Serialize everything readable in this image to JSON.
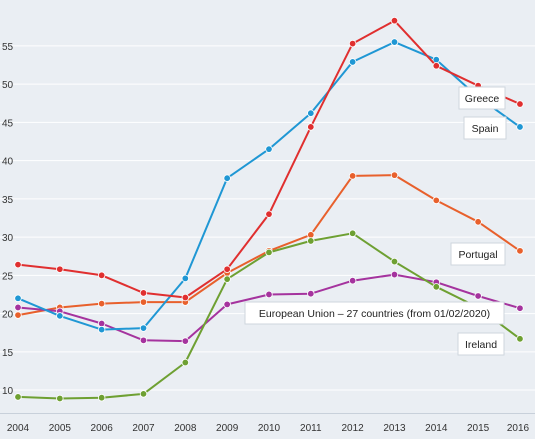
{
  "chart_data": {
    "type": "line",
    "title": "",
    "xlabel": "",
    "ylabel": "",
    "x": [
      "2004",
      "2005",
      "2006",
      "2007",
      "2008",
      "2009",
      "2010",
      "2011",
      "2012",
      "2013",
      "2014",
      "2015",
      "2016"
    ],
    "ylim": [
      7,
      61
    ],
    "yticks": [
      10,
      15,
      20,
      25,
      30,
      35,
      40,
      45,
      50,
      55
    ],
    "grid": true,
    "series": [
      {
        "name": "Greece",
        "color": "#e02f2f",
        "values": [
          26.4,
          25.8,
          25.0,
          22.7,
          22.1,
          25.8,
          33.0,
          44.4,
          55.3,
          58.3,
          52.4,
          49.8,
          47.4
        ]
      },
      {
        "name": "Spain",
        "color": "#1f97d4",
        "values": [
          22.0,
          19.7,
          17.9,
          18.1,
          24.6,
          37.7,
          41.5,
          46.2,
          52.9,
          55.5,
          53.2,
          48.3,
          44.4
        ]
      },
      {
        "name": "Portugal",
        "color": "#e8602c",
        "values": [
          19.8,
          20.8,
          21.3,
          21.5,
          21.5,
          25.3,
          28.2,
          30.3,
          38.0,
          38.1,
          34.8,
          32.0,
          28.2
        ]
      },
      {
        "name": "European Union - 27 countries (from 01/02/2020)",
        "color": "#a5339e",
        "values": [
          20.8,
          20.3,
          18.7,
          16.5,
          16.4,
          21.2,
          22.5,
          22.6,
          24.3,
          25.1,
          24.1,
          22.3,
          20.7
        ]
      },
      {
        "name": "Ireland",
        "color": "#6ea032",
        "values": [
          9.1,
          8.9,
          9.0,
          9.5,
          13.6,
          24.5,
          28.0,
          29.5,
          30.5,
          26.8,
          23.5,
          20.8,
          16.7
        ]
      }
    ],
    "labels": {
      "greece": "Greece",
      "spain": "Spain",
      "portugal": "Portugal",
      "eu": "European Union – 27 countries (from 01/02/2020)",
      "ireland": "Ireland"
    }
  }
}
